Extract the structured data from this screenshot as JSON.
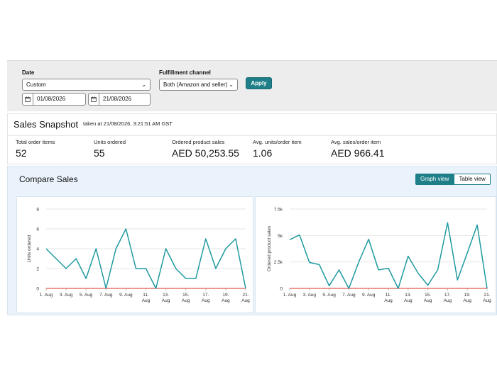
{
  "filters": {
    "date_label": "Date",
    "date_select": "Custom",
    "start_date": "01/08/2026",
    "end_date": "21/08/2026",
    "channel_label": "Fulfillment channel",
    "channel_select": "Both (Amazon and seller)",
    "apply_label": "Apply"
  },
  "snapshot": {
    "title": "Sales Snapshot",
    "taken_at": "taken at 21/08/2026, 3:21:51 AM GST",
    "metrics": [
      {
        "label": "Total order items",
        "value": "52"
      },
      {
        "label": "Units ordered",
        "value": "55"
      },
      {
        "label": "Ordered product sales",
        "value": "AED 50,253.55"
      },
      {
        "label": "Avg. units/order item",
        "value": "1.06"
      },
      {
        "label": "Avg. sales/order item",
        "value": "AED 966.41"
      }
    ]
  },
  "compare": {
    "title": "Compare Sales",
    "graph_view_label": "Graph view",
    "table_view_label": "Table view"
  },
  "colors": {
    "teal": "#1f9aa0",
    "baseline": "#e05a4f",
    "accent": "#1f7f89"
  },
  "chart_data": [
    {
      "type": "line",
      "ylabel": "Units ordered",
      "ylim": [
        0,
        8
      ],
      "yticks": [
        "0",
        "2",
        "4",
        "6",
        "8"
      ],
      "ytick_values": [
        0,
        2,
        4,
        6,
        8
      ],
      "x_ticks": [
        [
          "1. Aug"
        ],
        [
          "3. Aug"
        ],
        [
          "5. Aug"
        ],
        [
          "7. Aug"
        ],
        [
          "9. Aug"
        ],
        [
          "11.",
          "Aug"
        ],
        [
          "13.",
          "Aug"
        ],
        [
          "15.",
          "Aug"
        ],
        [
          "17.",
          "Aug"
        ],
        [
          "19.",
          "Aug"
        ],
        [
          "21.",
          "Aug"
        ]
      ],
      "x_tick_days": [
        1,
        3,
        5,
        7,
        9,
        11,
        13,
        15,
        17,
        19,
        21
      ],
      "days": [
        1,
        2,
        3,
        4,
        5,
        6,
        7,
        8,
        9,
        10,
        11,
        12,
        13,
        14,
        15,
        16,
        17,
        18,
        19,
        20,
        21
      ],
      "series": [
        {
          "values": [
            4,
            3,
            2,
            3,
            1,
            4,
            0,
            4,
            6,
            2,
            2,
            0,
            4,
            2,
            1,
            1,
            5,
            2,
            4,
            5,
            0
          ]
        },
        {
          "values": [
            0,
            0,
            0,
            0,
            0,
            0,
            0,
            0,
            0,
            0,
            0,
            0,
            0,
            0,
            0,
            0,
            0,
            0,
            0,
            0,
            0
          ]
        }
      ]
    },
    {
      "type": "line",
      "ylabel": "Ordered product sales",
      "ylim": [
        0,
        7500
      ],
      "yticks": [
        "0",
        "2.5k",
        "5k",
        "7.5k"
      ],
      "ytick_values": [
        0,
        2500,
        5000,
        7500
      ],
      "x_ticks": [
        [
          "1. Aug"
        ],
        [
          "3. Aug"
        ],
        [
          "5. Aug"
        ],
        [
          "7. Aug"
        ],
        [
          "9. Aug"
        ],
        [
          "11.",
          "Aug"
        ],
        [
          "13.",
          "Aug"
        ],
        [
          "15.",
          "Aug"
        ],
        [
          "17.",
          "Aug"
        ],
        [
          "19.",
          "Aug"
        ],
        [
          "21.",
          "Aug"
        ]
      ],
      "x_tick_days": [
        1,
        3,
        5,
        7,
        9,
        11,
        13,
        15,
        17,
        19,
        21
      ],
      "days": [
        1,
        2,
        3,
        4,
        5,
        6,
        7,
        8,
        9,
        10,
        11,
        12,
        13,
        14,
        15,
        16,
        17,
        18,
        19,
        20,
        21
      ],
      "series": [
        {
          "values": [
            4600,
            5050,
            2450,
            2250,
            250,
            1750,
            0,
            2500,
            4650,
            1750,
            1900,
            0,
            3050,
            1450,
            300,
            1750,
            6200,
            800,
            3350,
            6000,
            0
          ]
        },
        {
          "values": [
            0,
            0,
            0,
            0,
            0,
            0,
            0,
            0,
            0,
            0,
            0,
            0,
            0,
            0,
            0,
            0,
            0,
            0,
            0,
            0,
            0
          ]
        }
      ]
    }
  ]
}
